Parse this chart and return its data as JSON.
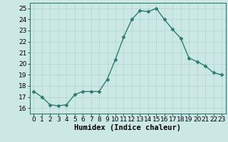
{
  "x": [
    0,
    1,
    2,
    3,
    4,
    5,
    6,
    7,
    8,
    9,
    10,
    11,
    12,
    13,
    14,
    15,
    16,
    17,
    18,
    19,
    20,
    21,
    22,
    23
  ],
  "y": [
    17.5,
    17.0,
    16.3,
    16.2,
    16.3,
    17.2,
    17.5,
    17.5,
    17.5,
    18.6,
    20.4,
    22.4,
    24.0,
    24.8,
    24.7,
    25.0,
    24.0,
    23.1,
    22.3,
    20.5,
    20.2,
    19.8,
    19.2,
    19.0
  ],
  "line_color": "#2e7d6e",
  "marker": "D",
  "marker_size": 2.5,
  "bg_color": "#cce8e4",
  "grid_color": "#aad4cf",
  "xlabel": "Humidex (Indice chaleur)",
  "xlim": [
    -0.5,
    23.5
  ],
  "ylim": [
    15.5,
    25.5
  ],
  "yticks": [
    16,
    17,
    18,
    19,
    20,
    21,
    22,
    23,
    24,
    25
  ],
  "xticks": [
    0,
    1,
    2,
    3,
    4,
    5,
    6,
    7,
    8,
    9,
    10,
    11,
    12,
    13,
    14,
    15,
    16,
    17,
    18,
    19,
    20,
    21,
    22,
    23
  ],
  "tick_fontsize": 6.5,
  "label_fontsize": 7.5
}
